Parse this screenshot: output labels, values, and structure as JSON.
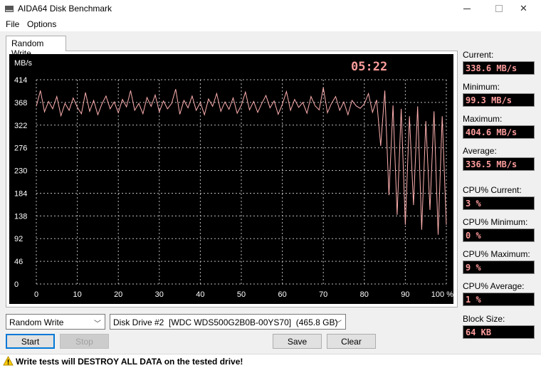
{
  "window": {
    "title": "AIDA64 Disk Benchmark",
    "icon": "disk-drive-icon"
  },
  "menu": [
    "File",
    "Options"
  ],
  "tab": {
    "label": "Random Write"
  },
  "chart_data": {
    "type": "line",
    "ylabel": "MB/s",
    "yticks": [
      "414",
      "368",
      "322",
      "276",
      "230",
      "184",
      "138",
      "92",
      "46",
      "0"
    ],
    "xticks": [
      "0",
      "10",
      "20",
      "30",
      "40",
      "50",
      "60",
      "70",
      "80",
      "90",
      "100 %"
    ],
    "ylim": [
      0,
      414
    ],
    "xlim": [
      0,
      100
    ],
    "timer": "05:22",
    "grid": true,
    "series_color": "#ffb0b0",
    "series": [
      {
        "x": [
          0,
          1,
          2,
          3,
          4,
          5,
          6,
          7,
          8,
          9,
          10,
          11,
          12,
          13,
          14,
          15,
          16,
          17,
          18,
          19,
          20,
          21,
          22,
          23,
          24,
          25,
          26,
          27,
          28,
          29,
          30,
          31,
          32,
          33,
          34,
          35,
          36,
          37,
          38,
          39,
          40,
          41,
          42,
          43,
          44,
          45,
          46,
          47,
          48,
          49,
          50,
          51,
          52,
          53,
          54,
          55,
          56,
          57,
          58,
          59,
          60,
          61,
          62,
          63,
          64,
          65,
          66,
          67,
          68,
          69,
          70,
          71,
          72,
          73,
          74,
          75,
          76,
          77,
          78,
          79,
          80,
          81,
          82,
          83,
          84,
          85,
          86,
          87,
          88,
          89,
          90,
          91,
          92,
          93,
          94,
          95,
          96,
          97,
          98,
          99,
          100
        ],
        "values": [
          360,
          392,
          349,
          370,
          355,
          380,
          341,
          366,
          352,
          377,
          358,
          345,
          388,
          350,
          372,
          343,
          365,
          381,
          355,
          369,
          347,
          374,
          359,
          392,
          352,
          366,
          345,
          378,
          360,
          383,
          349,
          371,
          355,
          366,
          395,
          344,
          372,
          357,
          381,
          352,
          368,
          343,
          375,
          360,
          386,
          350,
          369,
          354,
          377,
          346,
          362,
          389,
          353,
          370,
          348,
          366,
          382,
          357,
          371,
          344,
          364,
          390,
          352,
          374,
          358,
          368,
          346,
          380,
          361,
          353,
          398,
          347,
          366,
          380,
          352,
          369,
          343,
          372,
          361,
          356,
          365,
          386,
          348,
          373,
          280,
          392,
          180,
          362,
          140,
          355,
          120,
          340,
          160,
          360,
          110,
          330,
          150,
          350,
          100,
          340,
          120
        ]
      }
    ]
  },
  "stats": [
    {
      "label": "Current:",
      "value": "338.6 MB/s"
    },
    {
      "label": "Minimum:",
      "value": "99.3 MB/s"
    },
    {
      "label": "Maximum:",
      "value": "404.6 MB/s"
    },
    {
      "label": "Average:",
      "value": "336.5 MB/s"
    },
    {
      "label": "CPU% Current:",
      "value": "3 %"
    },
    {
      "label": "CPU% Minimum:",
      "value": "0 %"
    },
    {
      "label": "CPU% Maximum:",
      "value": "9 %"
    },
    {
      "label": "CPU% Average:",
      "value": "1 %"
    },
    {
      "label": "Block Size:",
      "value": "64 KB"
    }
  ],
  "controls": {
    "test_select": "Random Write",
    "drive_select": "Disk Drive #2  [WDC WDS500G2B0B-00YS70]  (465.8 GB)",
    "start": "Start",
    "stop": "Stop",
    "save": "Save",
    "clear": "Clear"
  },
  "warning": {
    "text": "Write tests will DESTROY ALL DATA on the tested drive!",
    "icon": "warning-icon"
  }
}
